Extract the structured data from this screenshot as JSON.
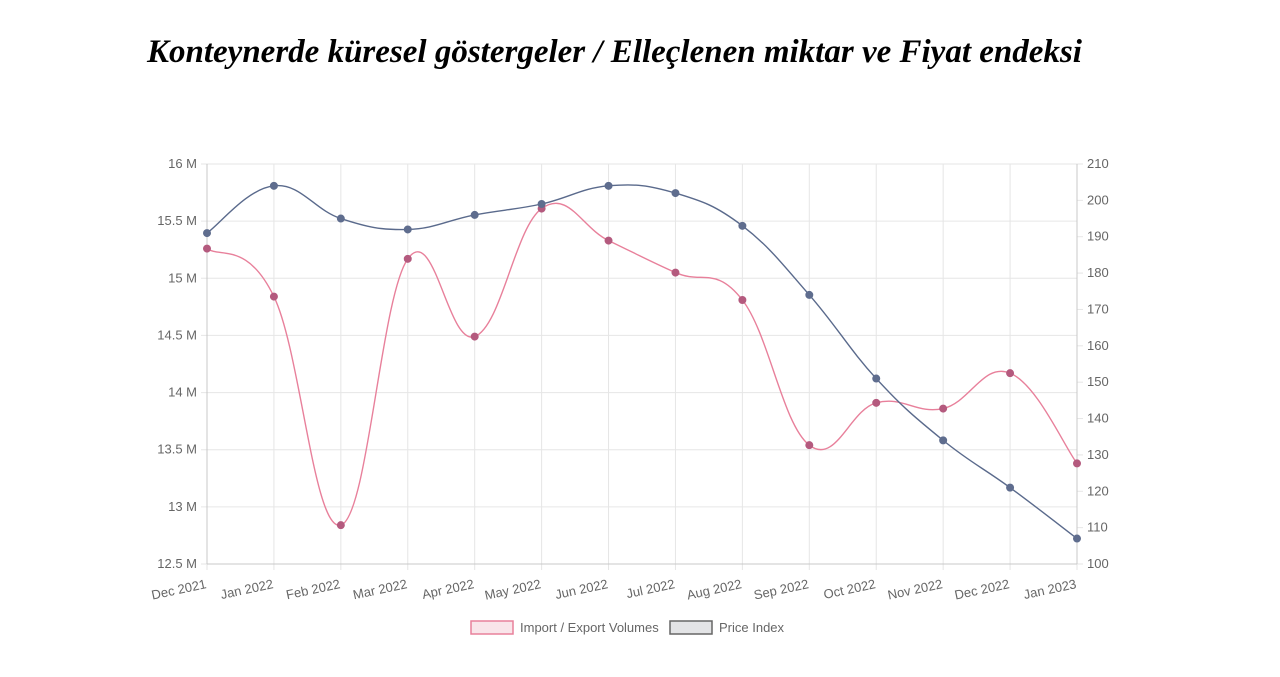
{
  "page": {
    "title": "Konteynerde küresel göstergeler / Elleçlenen miktar ve Fiyat endeksi"
  },
  "chart_data": {
    "type": "line",
    "title": "",
    "xlabel": "",
    "ylabel": "",
    "categories": [
      "Dec 2021",
      "Jan 2022",
      "Feb 2022",
      "Mar 2022",
      "Apr 2022",
      "May 2022",
      "Jun 2022",
      "Jul 2022",
      "Aug 2022",
      "Sep 2022",
      "Oct 2022",
      "Nov 2022",
      "Dec 2022",
      "Jan 2023"
    ],
    "series": [
      {
        "name": "Import / Export Volumes",
        "axis": "left",
        "color": "#e8809b",
        "point_color": "#b45a7e",
        "values": [
          15260000,
          14840000,
          12840000,
          15170000,
          14490000,
          15610000,
          15330000,
          15050000,
          14810000,
          13540000,
          13910000,
          13860000,
          14170000,
          13380000
        ]
      },
      {
        "name": "Price Index",
        "axis": "right",
        "color": "#5a6a8c",
        "point_color": "#5f6d8e",
        "values": [
          191,
          204,
          195,
          192,
          196,
          199,
          204,
          202,
          193,
          174,
          151,
          134,
          121,
          107
        ]
      }
    ],
    "y_left": {
      "ylim": [
        12500000,
        16000000
      ],
      "ticks": [
        16000000,
        15500000,
        15000000,
        14500000,
        14000000,
        13500000,
        13000000,
        12500000
      ],
      "tick_labels": [
        "16 M",
        "15.5 M",
        "15 M",
        "14.5 M",
        "14 M",
        "13.5 M",
        "13 M",
        "12.5 M"
      ]
    },
    "y_right": {
      "ylim": [
        100,
        210
      ],
      "ticks": [
        210,
        200,
        190,
        180,
        170,
        160,
        150,
        140,
        130,
        120,
        110,
        100
      ],
      "tick_labels": [
        "210",
        "200",
        "190",
        "180",
        "170",
        "160",
        "150",
        "140",
        "130",
        "120",
        "110",
        "100"
      ]
    },
    "grid": true,
    "legend": {
      "position": "bottom",
      "items": [
        {
          "label": "Import / Export Volumes",
          "fill": "#f9e5ea",
          "stroke": "#e8809b"
        },
        {
          "label": "Price Index",
          "fill": "#e3e4e6",
          "stroke": "#666666"
        }
      ]
    }
  }
}
